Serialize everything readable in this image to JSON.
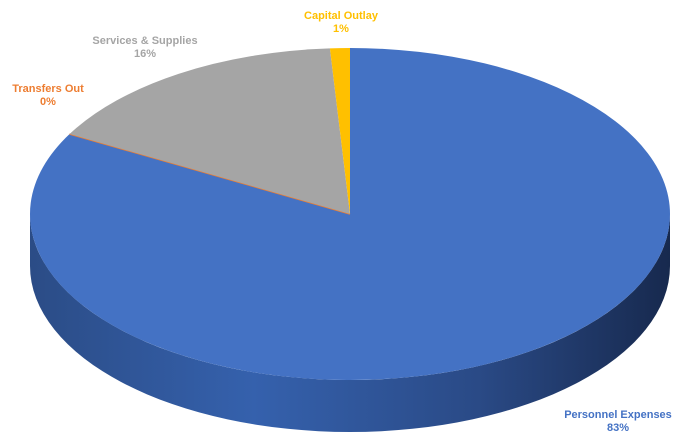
{
  "chart_data": {
    "type": "pie",
    "style": "3d",
    "title": "",
    "slices": [
      {
        "label": "Personnel Expenses",
        "value": 83,
        "value_label": "83%",
        "color": "#4472C4"
      },
      {
        "label": "Transfers Out",
        "value": 0,
        "value_label": "0%",
        "color": "#ED7D31"
      },
      {
        "label": "Services & Supplies",
        "value": 16,
        "value_label": "16%",
        "color": "#A5A5A5"
      },
      {
        "label": "Capital Outlay",
        "value": 1,
        "value_label": "1%",
        "color": "#FFC000"
      }
    ]
  }
}
